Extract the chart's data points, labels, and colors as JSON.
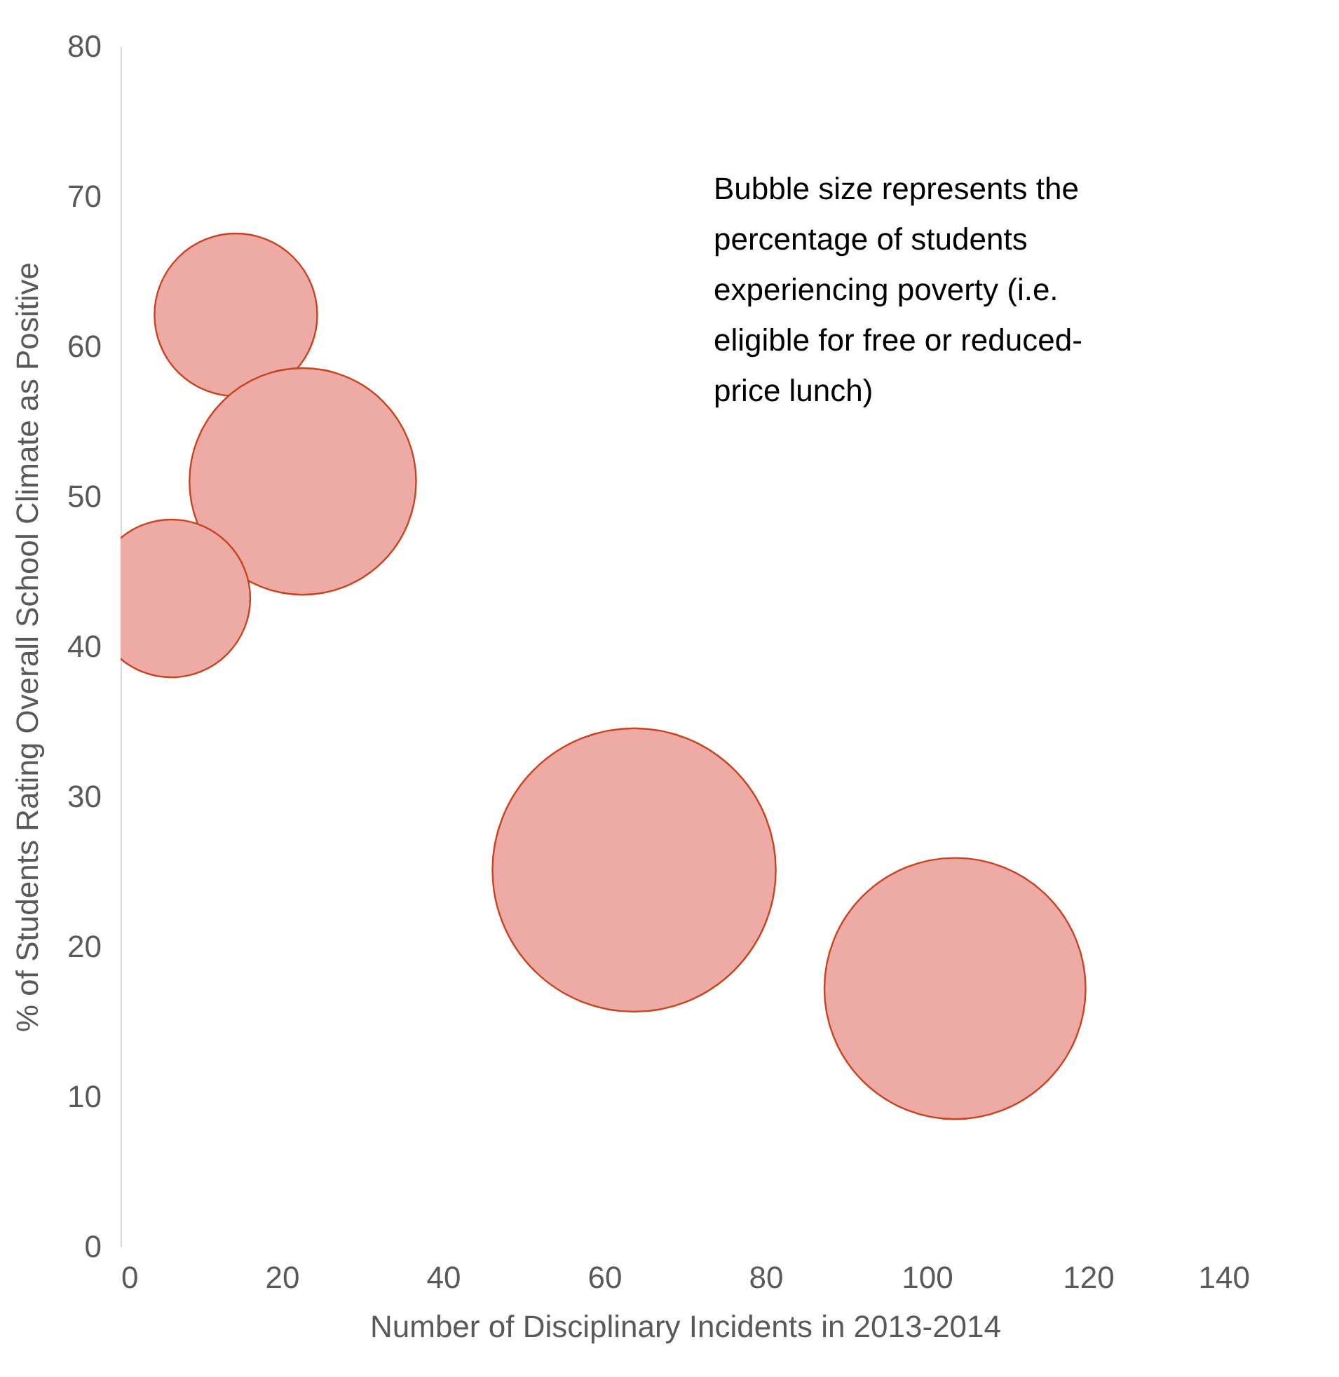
{
  "chart_data": {
    "type": "bubble",
    "xlabel": "Number of Disciplinary Incidents in 2013-2014",
    "ylabel": "% of Students Rating Overall School Climate as Positive",
    "annotations": [
      "Bubble size represents the percentage of students experiencing poverty (i.e. eligible for free or reduced-price lunch)"
    ],
    "x": [
      14.3,
      22.6,
      6.3,
      63.7,
      103.5
    ],
    "series": [
      {
        "color": "#eeaaa4",
        "values": [
          62.1,
          51.0,
          43.2,
          25.1,
          17.2
        ],
        "sizes": [
          0.33,
          0.64,
          0.31,
          1,
          0.85
        ]
      }
    ],
    "xlim": [
      0,
      140
    ],
    "xticks": [
      0,
      20,
      40,
      60,
      80,
      100,
      120,
      140
    ],
    "ylim": [
      0,
      80
    ],
    "yticks": [
      0,
      10,
      20,
      30,
      40,
      50,
      60,
      70,
      80
    ],
    "grid": false
  }
}
